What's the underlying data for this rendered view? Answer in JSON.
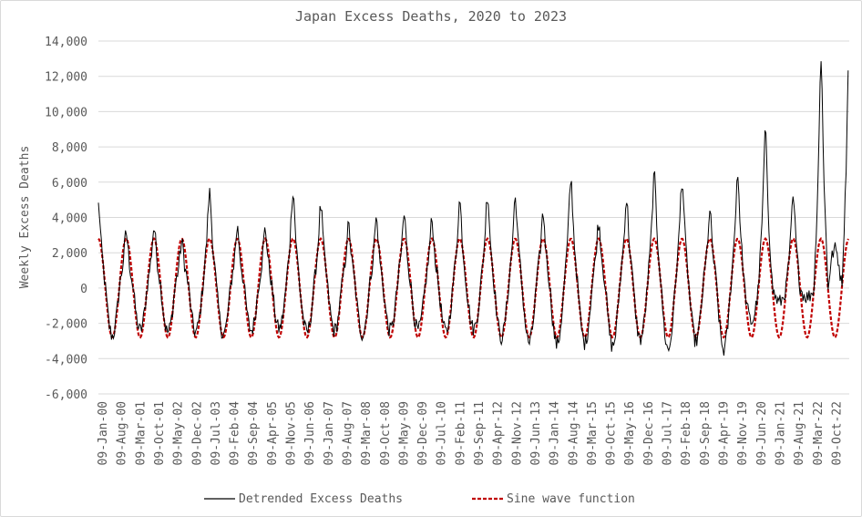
{
  "chart_data": {
    "type": "line",
    "title": "Japan Excess Deaths, 2020 to 2023",
    "xlabel": "",
    "ylabel": "Weekly Excess Deaths",
    "ylim": [
      -6000,
      14000
    ],
    "yticks": [
      "14,000",
      "12,000",
      "10,000",
      "8,000",
      "6,000",
      "4,000",
      "2,000",
      "0",
      "-2,000",
      "-4,000",
      "-6,000"
    ],
    "categories": [
      "09-Jan-00",
      "09-Aug-00",
      "09-Mar-01",
      "09-Oct-01",
      "09-May-02",
      "09-Dec-02",
      "09-Jul-03",
      "09-Feb-04",
      "09-Sep-04",
      "09-Apr-05",
      "09-Nov-05",
      "09-Jun-06",
      "09-Jan-07",
      "09-Aug-07",
      "09-Mar-08",
      "09-Oct-08",
      "09-May-09",
      "09-Dec-09",
      "09-Jul-10",
      "09-Feb-11",
      "09-Sep-11",
      "09-Apr-12",
      "09-Nov-12",
      "09-Jun-13",
      "09-Jan-14",
      "09-Aug-14",
      "09-Mar-15",
      "09-Oct-15",
      "09-May-16",
      "09-Dec-16",
      "09-Jul-17",
      "09-Feb-18",
      "09-Sep-18",
      "09-Apr-19",
      "09-Nov-19",
      "09-Jun-20",
      "09-Jan-21",
      "09-Aug-21",
      "09-Mar-22",
      "09-Oct-22"
    ],
    "grid": true,
    "legend_position": "bottom",
    "series": [
      {
        "name": "Detrended Excess Deaths",
        "color": "#000000",
        "style": "solid",
        "peaks": [
          4700,
          3100,
          3400,
          2600,
          5400,
          3400,
          3300,
          5500,
          4600,
          3500,
          3900,
          4100,
          3800,
          4900,
          5300,
          5100,
          4200,
          6100,
          3700,
          5000,
          6300,
          6100,
          4200,
          6400,
          8700,
          5000,
          12700
        ],
        "troughs": [
          -2700,
          -2400,
          -2500,
          -2500,
          -2600,
          -2400,
          -2300,
          -2500,
          -2400,
          -2600,
          -2400,
          -2400,
          -2500,
          -2300,
          -2800,
          -3100,
          -3200,
          -3100,
          -3300,
          -2900,
          -3500,
          -3000,
          -3500,
          -1900,
          -800,
          -500,
          2200
        ]
      },
      {
        "name": "Sine wave function",
        "color": "#c00000",
        "style": "dashed",
        "amplitude": 2800,
        "offset": 0,
        "cycles": 27.2
      }
    ]
  }
}
